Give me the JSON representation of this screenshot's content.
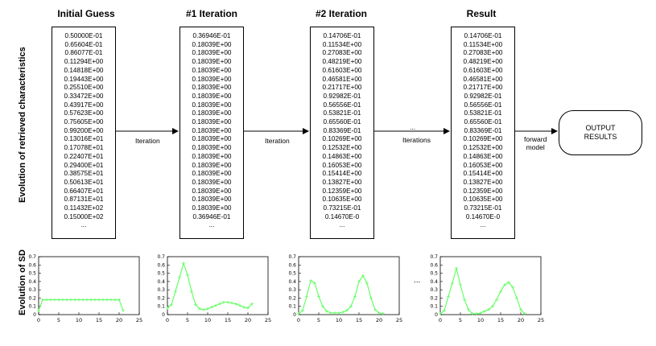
{
  "row_labels": {
    "characteristics": "Evolution of retrieved characteristics",
    "sd": "Evolution of SD"
  },
  "columns": [
    {
      "title": "Initial Guess",
      "values": [
        "0.50000E-01",
        "0.65604E-01",
        "0.86077E-01",
        "0.11294E+00",
        "0.14818E+00",
        "0.19443E+00",
        "0.25510E+00",
        "0.33472E+00",
        "0.43917E+00",
        "0.57623E+00",
        "0.75605E+00",
        "0.99200E+00",
        "0.13016E+01",
        "0.17078E+01",
        "0.22407E+01",
        "0.29400E+01",
        "0.38575E+01",
        "0.50613E+01",
        "0.66407E+01",
        "0.87131E+01",
        "0.11432E+02",
        "0.15000E+02",
        "..."
      ]
    },
    {
      "title": "#1 Iteration",
      "values": [
        "0.36946E-01",
        "0.18039E+00",
        "0.18039E+00",
        "0.18039E+00",
        "0.18039E+00",
        "0.18039E+00",
        "0.18039E+00",
        "0.18039E+00",
        "0.18039E+00",
        "0.18039E+00",
        "0.18039E+00",
        "0.18039E+00",
        "0.18039E+00",
        "0.18039E+00",
        "0.18039E+00",
        "0.18039E+00",
        "0.18039E+00",
        "0.18039E+00",
        "0.18039E+00",
        "0.18039E+00",
        "0.18039E+00",
        "0.36946E-01",
        "..."
      ]
    },
    {
      "title": "#2 Iteration",
      "values": [
        "0.14706E-01",
        "0.11534E+00",
        "0.27083E+00",
        "0.48219E+00",
        "0.61603E+00",
        "0.46581E+00",
        "0.21717E+00",
        "0.92982E-01",
        "0.56556E-01",
        "0.53821E-01",
        "0.65560E-01",
        "0.83369E-01",
        "0.10269E+00",
        "0.12532E+00",
        "0.14863E+00",
        "0.16053E+00",
        "0.15414E+00",
        "0.13827E+00",
        "0.12359E+00",
        "0.10635E+00",
        "0.73215E-01",
        "0.14670E-0",
        "..."
      ]
    },
    {
      "title": "Result",
      "values": [
        "0.14706E-01",
        "0.11534E+00",
        "0.27083E+00",
        "0.48219E+00",
        "0.61603E+00",
        "0.46581E+00",
        "0.21717E+00",
        "0.92982E-01",
        "0.56556E-01",
        "0.53821E-01",
        "0.65560E-01",
        "0.83369E-01",
        "0.10269E+00",
        "0.12532E+00",
        "0.14863E+00",
        "0.16053E+00",
        "0.15414E+00",
        "0.13827E+00",
        "0.12359E+00",
        "0.10635E+00",
        "0.73215E-01",
        "0.14670E-0",
        "..."
      ]
    }
  ],
  "connectors": {
    "iteration_1": "Iteration",
    "iteration_2": "Iteration",
    "ellipsis": "...",
    "iterations": "Iterations",
    "forward_model": [
      "forward",
      "model"
    ]
  },
  "output": {
    "lines": [
      "OUTPUT",
      "RESULTS"
    ]
  },
  "sd_ellipsis": "...",
  "colors": {
    "line": "#66ff66",
    "axis": "#000000"
  },
  "chart_data": [
    {
      "type": "line",
      "xlim": [
        0,
        25
      ],
      "ylim": [
        0,
        0.7
      ],
      "xticks": [
        0,
        5,
        10,
        15,
        20,
        25
      ],
      "yticks": [
        0,
        0.1,
        0.2,
        0.3,
        0.4,
        0.5,
        0.6,
        0.7
      ],
      "x": [
        0,
        1,
        2,
        3,
        4,
        5,
        6,
        7,
        8,
        9,
        10,
        11,
        12,
        13,
        14,
        15,
        16,
        17,
        18,
        19,
        20,
        21
      ],
      "y": [
        0.05,
        0.18,
        0.18,
        0.18,
        0.18,
        0.18,
        0.18,
        0.18,
        0.18,
        0.18,
        0.18,
        0.18,
        0.18,
        0.18,
        0.18,
        0.18,
        0.18,
        0.18,
        0.18,
        0.18,
        0.18,
        0.05
      ]
    },
    {
      "type": "line",
      "xlim": [
        0,
        25
      ],
      "ylim": [
        0,
        0.7
      ],
      "xticks": [
        0,
        5,
        10,
        15,
        20,
        25
      ],
      "yticks": [
        0,
        0.1,
        0.2,
        0.3,
        0.4,
        0.5,
        0.6,
        0.7
      ],
      "x": [
        0,
        1,
        2,
        3,
        4,
        5,
        6,
        7,
        8,
        9,
        10,
        11,
        12,
        13,
        14,
        15,
        16,
        17,
        18,
        19,
        20,
        21
      ],
      "y": [
        0.08,
        0.12,
        0.28,
        0.45,
        0.62,
        0.48,
        0.28,
        0.12,
        0.07,
        0.06,
        0.07,
        0.09,
        0.11,
        0.13,
        0.15,
        0.15,
        0.14,
        0.13,
        0.11,
        0.09,
        0.08,
        0.13
      ]
    },
    {
      "type": "line",
      "xlim": [
        0,
        25
      ],
      "ylim": [
        0,
        0.7
      ],
      "xticks": [
        0,
        5,
        10,
        15,
        20,
        25
      ],
      "yticks": [
        0,
        0.1,
        0.2,
        0.3,
        0.4,
        0.5,
        0.6,
        0.7
      ],
      "x": [
        0,
        1,
        2,
        3,
        4,
        5,
        6,
        7,
        8,
        9,
        10,
        11,
        12,
        13,
        14,
        15,
        16,
        17,
        18,
        19,
        20,
        21
      ],
      "y": [
        0.01,
        0.05,
        0.22,
        0.41,
        0.38,
        0.22,
        0.1,
        0.04,
        0.02,
        0.02,
        0.02,
        0.03,
        0.05,
        0.1,
        0.22,
        0.4,
        0.47,
        0.38,
        0.2,
        0.06,
        0.02,
        0.01
      ]
    },
    {
      "type": "line",
      "xlim": [
        0,
        25
      ],
      "ylim": [
        0,
        0.7
      ],
      "xticks": [
        0,
        5,
        10,
        15,
        20,
        25
      ],
      "yticks": [
        0,
        0.1,
        0.2,
        0.3,
        0.4,
        0.5,
        0.6,
        0.7
      ],
      "x": [
        0,
        1,
        2,
        3,
        4,
        5,
        6,
        7,
        8,
        9,
        10,
        11,
        12,
        13,
        14,
        15,
        16,
        17,
        18,
        19,
        20,
        21
      ],
      "y": [
        0.01,
        0.05,
        0.22,
        0.38,
        0.56,
        0.36,
        0.18,
        0.06,
        0.01,
        0.01,
        0.02,
        0.04,
        0.06,
        0.1,
        0.18,
        0.28,
        0.36,
        0.39,
        0.33,
        0.2,
        0.06,
        0.01
      ]
    }
  ]
}
